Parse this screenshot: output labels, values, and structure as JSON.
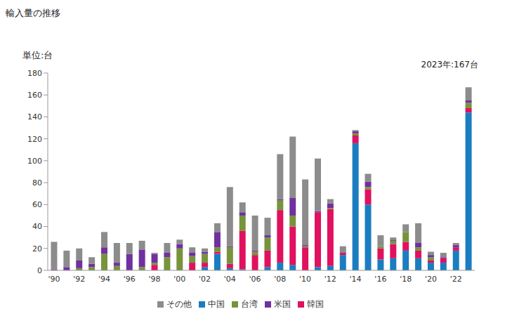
{
  "chart_data": {
    "type": "bar",
    "title": "輸入量の推移",
    "y_label": "単位:台",
    "annotation": "2023年:167台",
    "stacked": true,
    "grid": false,
    "legend": "bottom",
    "categories": [
      "'90",
      null,
      "'92",
      null,
      "'94",
      null,
      "'96",
      null,
      "'98",
      null,
      "'00",
      null,
      "'02",
      null,
      "'04",
      null,
      "'06",
      null,
      "'08",
      null,
      "'10",
      null,
      "'12",
      null,
      "'14",
      null,
      "'16",
      null,
      "'18",
      null,
      "'20",
      null,
      "'22",
      null
    ],
    "ylim": [
      0,
      180
    ],
    "yticks": [
      0,
      20,
      40,
      60,
      80,
      100,
      120,
      140,
      160,
      180
    ],
    "series": [
      {
        "name": "中国",
        "color": "#1a7dc0",
        "values": [
          0,
          0,
          0,
          0,
          0,
          0,
          0,
          0,
          0,
          0,
          0,
          0,
          3,
          15,
          2,
          1,
          0,
          3,
          7,
          5,
          0,
          3,
          4,
          14,
          116,
          60,
          10,
          11,
          18,
          11,
          7,
          7,
          18,
          144
        ]
      },
      {
        "name": "韓国",
        "color": "#e0115f",
        "values": [
          0,
          0,
          0,
          0,
          0,
          0,
          0,
          0,
          5,
          0,
          0,
          7,
          4,
          2,
          4,
          35,
          14,
          15,
          48,
          35,
          21,
          50,
          52,
          2,
          7,
          14,
          10,
          13,
          8,
          7,
          2,
          4,
          3,
          4
        ]
      },
      {
        "name": "台湾",
        "color": "#77933c",
        "values": [
          0,
          0,
          2,
          3,
          15,
          4,
          0,
          3,
          2,
          12,
          20,
          6,
          8,
          4,
          15,
          14,
          3,
          12,
          9,
          10,
          1,
          0,
          1,
          0,
          2,
          2,
          2,
          3,
          9,
          3,
          3,
          0,
          0,
          5
        ]
      },
      {
        "name": "米国",
        "color": "#7030a0",
        "values": [
          1,
          3,
          7,
          3,
          6,
          3,
          15,
          16,
          8,
          4,
          4,
          3,
          2,
          14,
          1,
          3,
          1,
          2,
          1,
          16,
          1,
          1,
          4,
          0,
          2,
          5,
          0,
          1,
          0,
          4,
          2,
          1,
          2,
          2
        ]
      },
      {
        "name": "その他",
        "color": "#8c8c8c",
        "values": [
          25,
          15,
          11,
          6,
          14,
          18,
          10,
          8,
          1,
          9,
          4,
          5,
          3,
          8,
          54,
          9,
          32,
          16,
          41,
          56,
          60,
          48,
          4,
          6,
          1,
          7,
          10,
          2,
          7,
          18,
          3,
          4,
          2,
          12
        ]
      }
    ]
  }
}
